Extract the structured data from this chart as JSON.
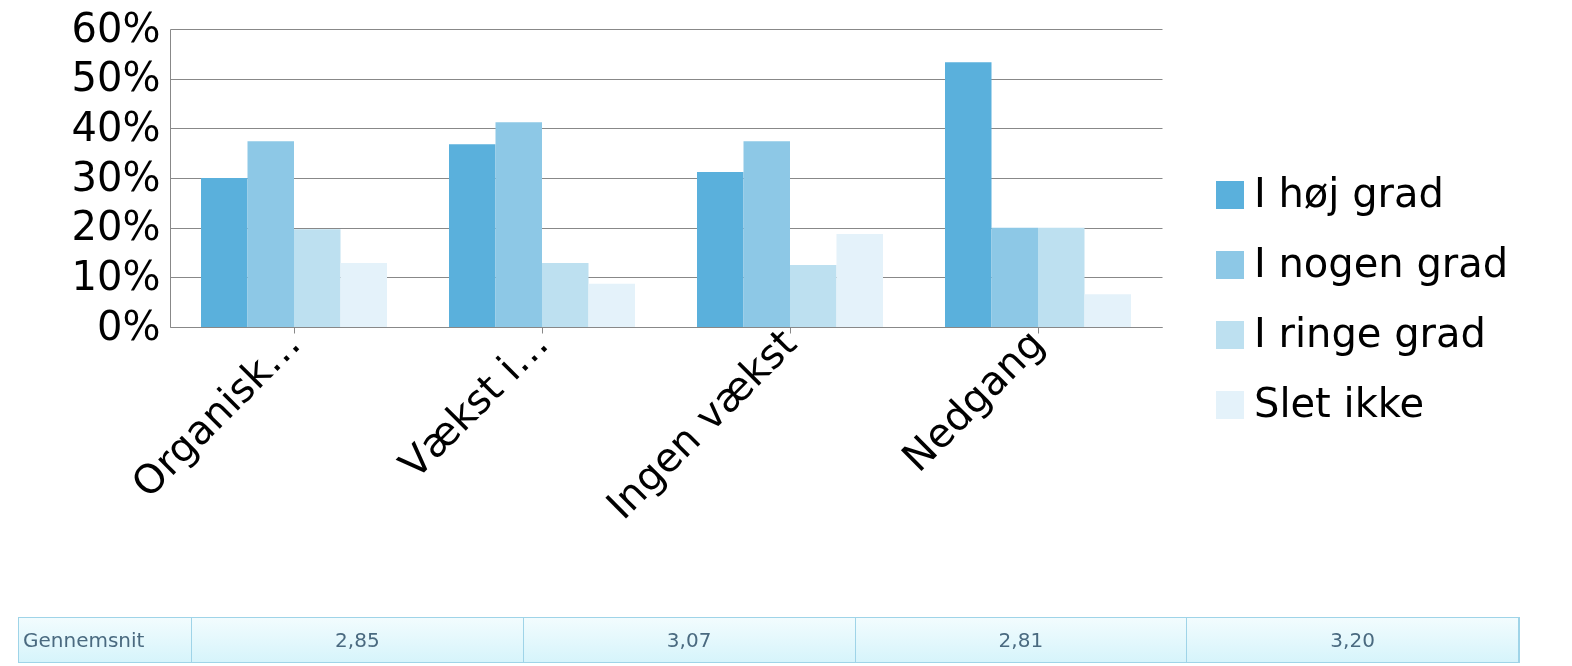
{
  "chart_data": {
    "type": "bar",
    "categories": [
      "Organisk…",
      "Vækst i…",
      "Ingen vækst",
      "Nedgang"
    ],
    "series": [
      {
        "name": "I høj grad",
        "color": "#5ab0dc",
        "values": [
          30,
          36.8,
          31.2,
          53.3
        ]
      },
      {
        "name": "I nogen grad",
        "color": "#8dc8e6",
        "values": [
          37.4,
          41.2,
          37.4,
          20
        ]
      },
      {
        "name": "I ringe grad",
        "color": "#bde0f0",
        "values": [
          19.7,
          12.9,
          12.5,
          20
        ]
      },
      {
        "name": "Slet ikke",
        "color": "#e4f2fa",
        "values": [
          12.9,
          8.7,
          18.7,
          6.6
        ]
      }
    ],
    "ylim": [
      0,
      60
    ],
    "yticks": [
      {
        "value": 0,
        "label": "0%"
      },
      {
        "value": 10,
        "label": "10%"
      },
      {
        "value": 20,
        "label": "20%"
      },
      {
        "value": 30,
        "label": "30%"
      },
      {
        "value": 40,
        "label": "40%"
      },
      {
        "value": 50,
        "label": "50%"
      },
      {
        "value": 60,
        "label": "60%"
      }
    ],
    "grid": "y",
    "legend": "right",
    "annotations": [
      "Gennemsnit",
      "2,85",
      "3,07",
      "2,81",
      "3,20"
    ]
  }
}
